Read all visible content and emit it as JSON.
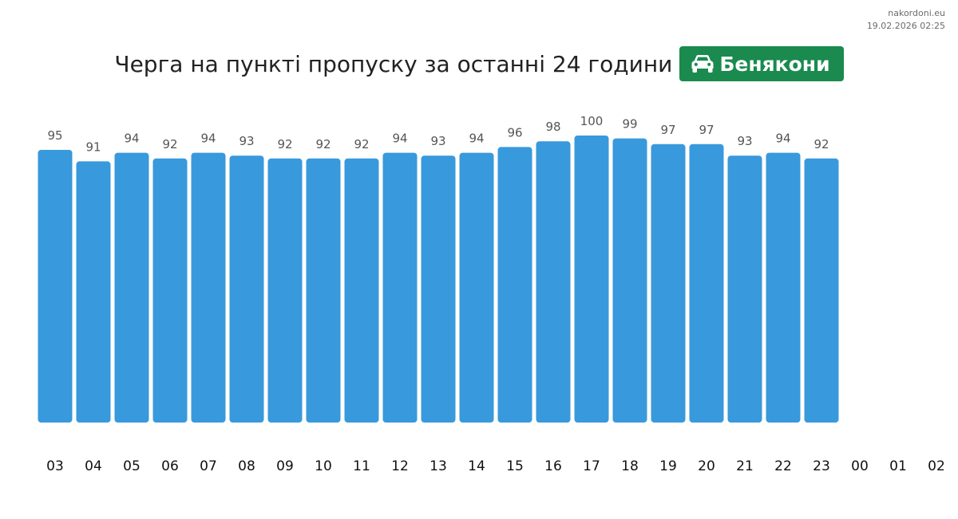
{
  "source": {
    "site": "nakordoni.eu",
    "timestamp": "19.02.2026 02:25"
  },
  "header": {
    "title": "Черга на пункті пропуску за останні 24 години",
    "badge_label": "Бенякони",
    "badge_icon": "car-icon",
    "badge_color": "#1a8a4e"
  },
  "chart_data": {
    "type": "bar",
    "categories": [
      "03",
      "04",
      "05",
      "06",
      "07",
      "08",
      "09",
      "10",
      "11",
      "12",
      "13",
      "14",
      "15",
      "16",
      "17",
      "18",
      "19",
      "20",
      "21",
      "22",
      "23",
      "00",
      "01",
      "02"
    ],
    "values": [
      95,
      91,
      94,
      92,
      94,
      93,
      92,
      92,
      92,
      94,
      93,
      94,
      96,
      98,
      100,
      99,
      97,
      97,
      93,
      94,
      92,
      null,
      null,
      null
    ],
    "title": "Черга на пункті пропуску за останні 24 години",
    "xlabel": "",
    "ylabel": "",
    "ylim": [
      0,
      100
    ],
    "grid": false,
    "bar_color": "#3899dc"
  }
}
